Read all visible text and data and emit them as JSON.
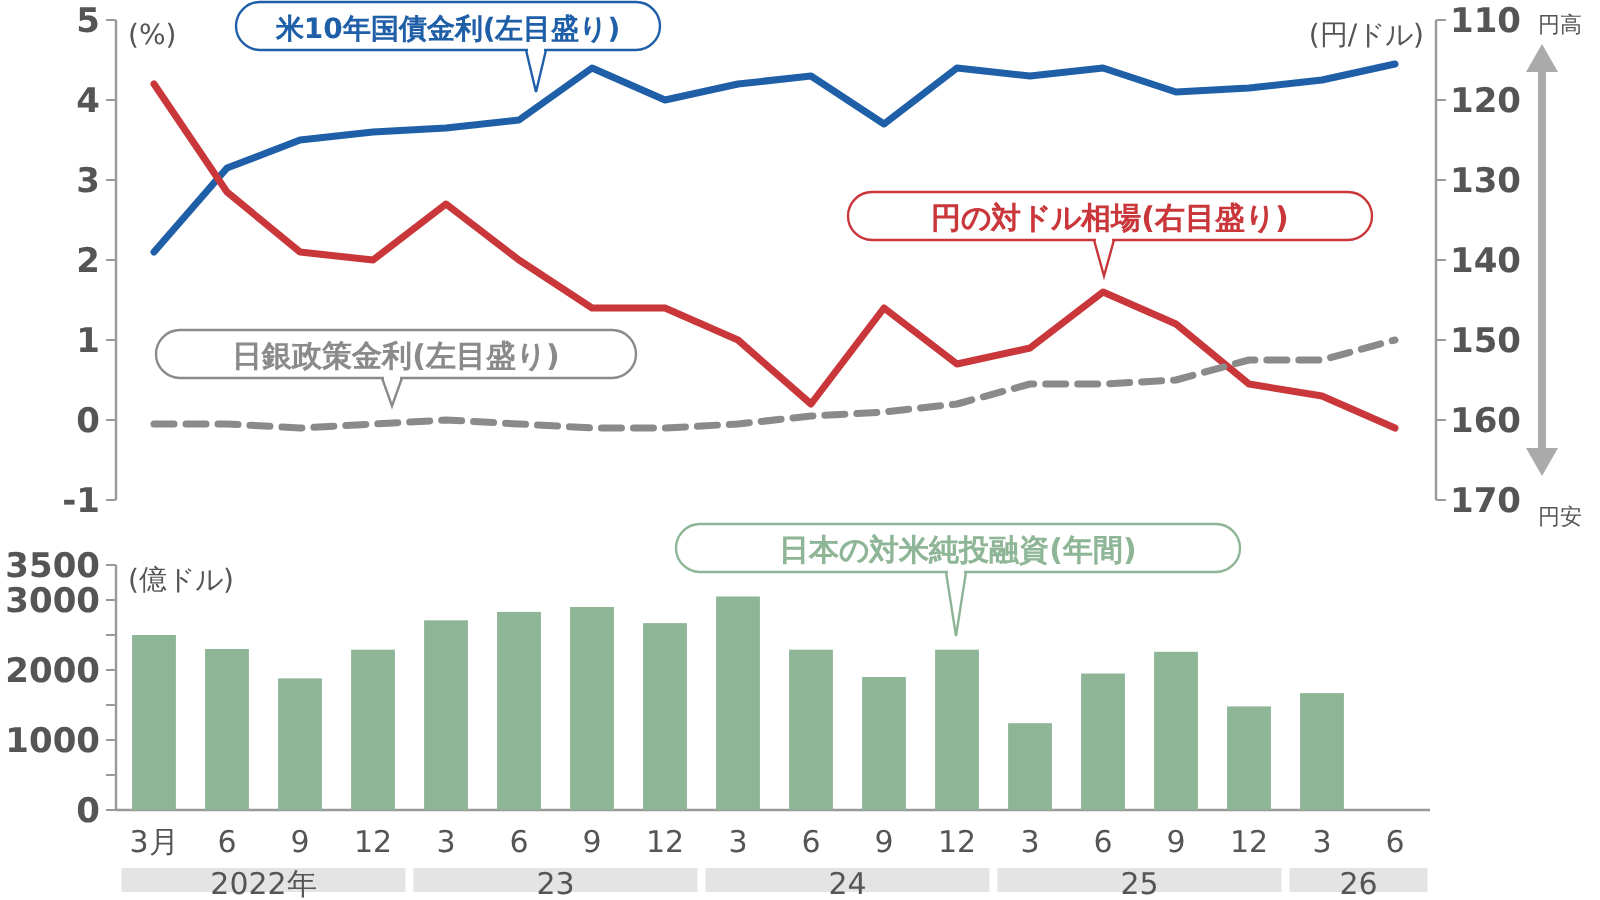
{
  "chart_data": [
    {
      "type": "line",
      "categories": [
        null,
        null,
        null,
        null,
        null,
        null,
        null,
        null,
        null,
        null,
        null,
        null,
        null,
        null,
        null,
        null,
        null,
        null
      ],
      "ylabel": "(%)",
      "y2label": "(円/ドル)",
      "ylim": [
        -1,
        5
      ],
      "yticks": [
        -1,
        0,
        1,
        2,
        3,
        4,
        5
      ],
      "y2lim": [
        170,
        110
      ],
      "y2ticks": [
        110,
        120,
        130,
        140,
        150,
        160,
        170
      ],
      "tick_labels": "y",
      "legend": false,
      "series": [
        {
          "name": "米10年国債金利(左目盛り)",
          "color": "#1f5fa8",
          "values": [
            2.1,
            3.15,
            3.5,
            3.6,
            3.65,
            3.75,
            4.4,
            4.0,
            4.2,
            4.3,
            3.7,
            4.4,
            4.3,
            4.4,
            4.1,
            4.15,
            4.25,
            4.45
          ]
        },
        {
          "name": "円の対ドル相場(右目盛り)",
          "color": "#c9373a",
          "axis": "y2",
          "values": [
            118,
            131.5,
            139,
            140,
            133,
            140,
            146,
            146,
            150,
            158,
            146,
            153,
            151,
            144,
            148,
            155.5,
            157,
            161
          ]
        },
        {
          "name": "日銀政策金利(左目盛り)",
          "color": "#8a8a8a",
          "line_style": "dashed",
          "values": [
            -0.05,
            -0.05,
            -0.1,
            -0.05,
            0,
            -0.05,
            -0.1,
            -0.1,
            -0.05,
            0.05,
            0.1,
            0.2,
            0.45,
            0.45,
            0.5,
            0.75,
            0.75,
            1.0
          ]
        }
      ],
      "annotations": [
        "円高",
        "円安"
      ]
    },
    {
      "type": "bar",
      "categories": [
        "3月",
        "6",
        "9",
        "12",
        "3",
        "6",
        "9",
        "12",
        "3",
        "6",
        "9",
        "12",
        "3",
        "6",
        "9",
        "12",
        "3",
        "6"
      ],
      "ylabel": "(億ドル)",
      "ylim": [
        0,
        3500
      ],
      "yticks": [
        0,
        {
          "value": 500,
          "label": null
        },
        1000,
        {
          "value": 1500,
          "label": null
        },
        2000,
        {
          "value": 2500,
          "label": null
        },
        3000,
        3500
      ],
      "series": [
        {
          "name": "日本の対米純投融資(年間)",
          "color": "#8db596",
          "values": [
            2500,
            2300,
            1880,
            2290,
            2710,
            2830,
            2900,
            2670,
            3050,
            2290,
            1900,
            2290,
            1240,
            1950,
            2260,
            1480,
            1670,
            null
          ]
        }
      ],
      "annotations": [
        "2022年",
        "23",
        "24",
        "25",
        "26"
      ]
    }
  ]
}
